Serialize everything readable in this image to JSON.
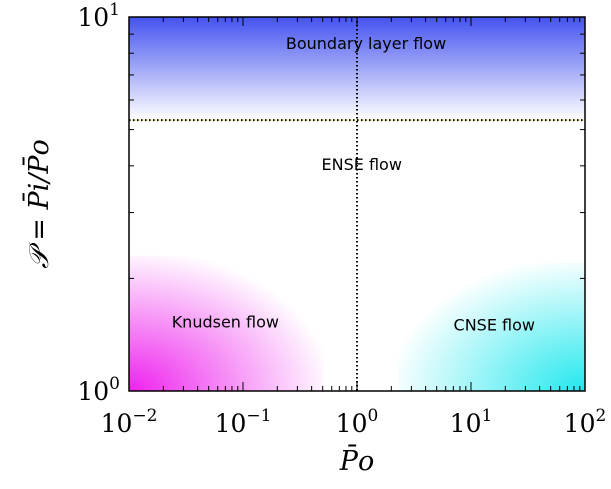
{
  "chart_data": {
    "type": "region_map",
    "title": "",
    "x_scale": "log",
    "y_scale": "log",
    "xlim": [
      0.01,
      100
    ],
    "ylim": [
      1,
      10
    ],
    "xlabel": "P̄o",
    "ylabel": "𝒫 = P̄i/P̄o",
    "x_ticks": [
      {
        "value": 0.01,
        "base": "10",
        "exp": "−2"
      },
      {
        "value": 0.1,
        "base": "10",
        "exp": "−1"
      },
      {
        "value": 1,
        "base": "10",
        "exp": "0"
      },
      {
        "value": 10,
        "base": "10",
        "exp": "1"
      },
      {
        "value": 100,
        "base": "10",
        "exp": "2"
      }
    ],
    "y_ticks": [
      {
        "value": 1,
        "base": "10",
        "exp": "0"
      },
      {
        "value": 10,
        "base": "10",
        "exp": "1"
      }
    ],
    "reference_lines": [
      {
        "orientation": "vertical",
        "x": 1,
        "style": "dotted",
        "color": "#000000"
      },
      {
        "orientation": "horizontal",
        "y": 5.3,
        "style": "dotted",
        "color": "#000000"
      }
    ],
    "regions": [
      {
        "name": "Boundary layer flow",
        "x_range": [
          0.01,
          100
        ],
        "y_range": [
          5.3,
          10
        ],
        "color": "#3344ee",
        "fade": "up"
      },
      {
        "name": "ENSE flow",
        "x_range": [
          0.01,
          100
        ],
        "y_range": [
          2.2,
          5.3
        ],
        "color": "#ffffff",
        "fade": "none"
      },
      {
        "name": "Knudsen flow",
        "x_range": [
          0.01,
          0.5
        ],
        "y_range": [
          1,
          2.3
        ],
        "color": "#ee22ee",
        "fade": "to-lower-left"
      },
      {
        "name": "CNSE flow",
        "x_range": [
          2.3,
          100
        ],
        "y_range": [
          1,
          2.2
        ],
        "color": "#22e8ee",
        "fade": "to-lower-right"
      }
    ],
    "labels": [
      {
        "text": "Boundary layer flow",
        "x": 1.2,
        "y": 8.2
      },
      {
        "text": "ENSE flow",
        "x": 1.1,
        "y": 3.9
      },
      {
        "text": "Knudsen flow",
        "x": 0.07,
        "y": 1.48
      },
      {
        "text": "CNSE flow",
        "x": 16,
        "y": 1.45
      }
    ]
  }
}
